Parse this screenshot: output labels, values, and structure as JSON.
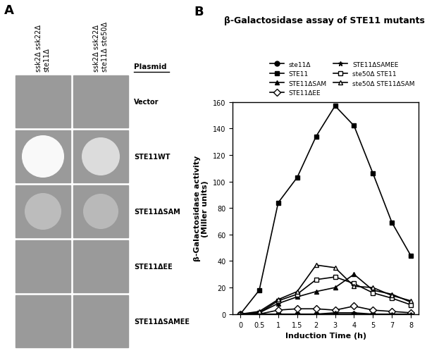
{
  "panel_labels": [
    "A",
    "B"
  ],
  "panel_a": {
    "columns": [
      "ssk2Δ ssk22Δ\nste11Δ",
      "ssk2Δ ssk22Δ\nste11Δ ste50Δ"
    ],
    "header": "Plasmid",
    "rows": [
      "Vector",
      "STE11WT",
      "STE11ΔSAM",
      "STE11ΔEE",
      "STE11ΔSAMEE"
    ]
  },
  "chart_data": {
    "type": "line",
    "title": "β-Galactosidase assay of STE11 mutants",
    "x_label": "Induction Time (h)",
    "y_label": "β-Galactosidase activity\n(Miller units)",
    "categories": [
      "0",
      "0.5",
      "1",
      "1.5",
      "2",
      "3",
      "4",
      "5",
      "7",
      "8"
    ],
    "ylim": [
      0,
      160
    ],
    "yticks": [
      0,
      20,
      40,
      60,
      80,
      100,
      120,
      140,
      160
    ],
    "legend": "upper right",
    "series": [
      {
        "name": "ste11Δ",
        "color": "#000000",
        "marker": "circle",
        "values": [
          0,
          0,
          0,
          0,
          0,
          0,
          0,
          0,
          0,
          0
        ]
      },
      {
        "name": "STE11",
        "color": "#000000",
        "marker": "square",
        "values": [
          0,
          18,
          84,
          103,
          134,
          157,
          142,
          106,
          69,
          44
        ]
      },
      {
        "name": "STE11ΔSAM",
        "color": "#000000",
        "marker": "triangle",
        "values": [
          0,
          1,
          8,
          13,
          17,
          20,
          30,
          18,
          15,
          9
        ]
      },
      {
        "name": "STE11ΔEE",
        "color": "#000000",
        "marker": "diamond_open",
        "values": [
          0,
          0,
          3,
          4,
          4,
          3,
          6,
          3,
          2,
          1
        ]
      },
      {
        "name": "STE11ΔSAMEE",
        "color": "#000000",
        "marker": "star",
        "values": [
          0,
          0,
          0,
          0,
          0,
          1,
          1,
          0,
          0,
          0
        ]
      },
      {
        "name": "ste50Δ STE11",
        "color": "#000000",
        "marker": "square_open",
        "values": [
          0,
          1,
          10,
          15,
          26,
          28,
          23,
          16,
          12,
          7
        ]
      },
      {
        "name": "ste50Δ STE11ΔSAM",
        "color": "#000000",
        "marker": "triangle_open",
        "values": [
          0,
          2,
          11,
          17,
          37,
          35,
          21,
          20,
          14,
          10
        ]
      }
    ]
  }
}
